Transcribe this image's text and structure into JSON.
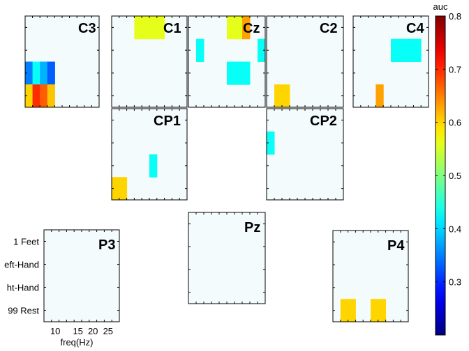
{
  "chart_data": {
    "type": "heatmap",
    "colorbar": {
      "label": "auc",
      "range": [
        0.2,
        0.8
      ],
      "ticks": [
        "0.3",
        "0.4",
        "0.5",
        "0.6",
        "0.7",
        "0.8"
      ],
      "colormap": "jet"
    },
    "x_tick_labels": [
      "10",
      "15",
      "20",
      "25"
    ],
    "y_tick_labels": [
      "1 Feet",
      "eft-Hand",
      "ht-Hand",
      "99 Rest"
    ],
    "x_label": "freq(Hz)",
    "grid_shape": {
      "rows": 4,
      "cols": 10
    },
    "background_value": 0.5,
    "panels": [
      {
        "name": "C3",
        "cells": [
          [
            2,
            0,
            0.35
          ],
          [
            2,
            1,
            0.43
          ],
          [
            2,
            2,
            0.38
          ],
          [
            2,
            3,
            0.33
          ],
          [
            3,
            0,
            0.6
          ],
          [
            3,
            1,
            0.7
          ],
          [
            3,
            2,
            0.67
          ],
          [
            3,
            3,
            0.61
          ]
        ]
      },
      {
        "name": "C1",
        "cells": [
          [
            0,
            3,
            0.56
          ],
          [
            0,
            4,
            0.56
          ],
          [
            0,
            5,
            0.56
          ],
          [
            0,
            6,
            0.56
          ]
        ]
      },
      {
        "name": "Cz",
        "cells": [
          [
            0,
            5,
            0.56
          ],
          [
            0,
            6,
            0.56
          ],
          [
            0,
            7,
            0.63
          ],
          [
            1,
            1,
            0.43
          ],
          [
            1,
            9,
            0.43
          ],
          [
            2,
            5,
            0.43
          ],
          [
            2,
            6,
            0.43
          ],
          [
            2,
            7,
            0.43
          ]
        ]
      },
      {
        "name": "C2",
        "cells": [
          [
            3,
            1,
            0.6
          ],
          [
            3,
            2,
            0.6
          ]
        ]
      },
      {
        "name": "C4",
        "cells": [
          [
            1,
            5,
            0.43
          ],
          [
            1,
            6,
            0.43
          ],
          [
            1,
            7,
            0.43
          ],
          [
            1,
            8,
            0.43
          ],
          [
            3,
            3,
            0.63
          ]
        ]
      },
      {
        "name": "CP1",
        "cells": [
          [
            2,
            5,
            0.43
          ],
          [
            3,
            0,
            0.6
          ],
          [
            3,
            1,
            0.6
          ]
        ]
      },
      {
        "name": "CP2",
        "cells": [
          [
            1,
            0,
            0.43
          ]
        ]
      },
      {
        "name": "P3",
        "cells": []
      },
      {
        "name": "Pz",
        "cells": []
      },
      {
        "name": "P4",
        "cells": [
          [
            3,
            1,
            0.6
          ],
          [
            3,
            2,
            0.6
          ],
          [
            3,
            5,
            0.6
          ],
          [
            3,
            6,
            0.6
          ]
        ]
      }
    ]
  }
}
